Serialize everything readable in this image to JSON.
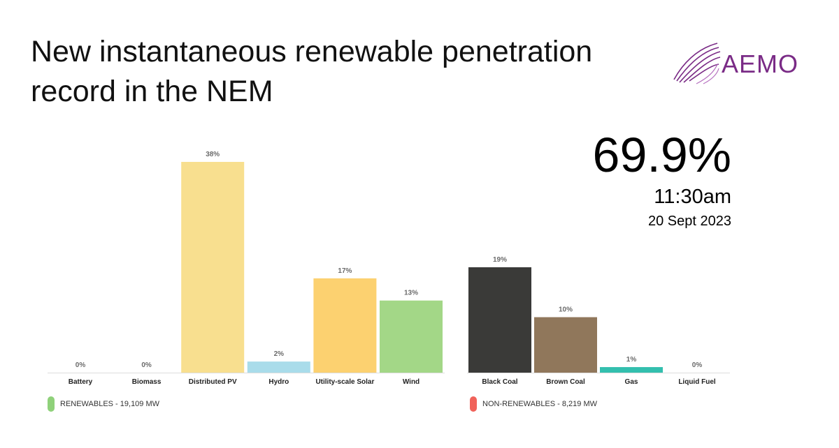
{
  "title": "New instantaneous renewable penetration record in the NEM",
  "logo": {
    "text": "AEMO",
    "icon": "aemo-swirl-logo-icon",
    "color": "#7a2b86"
  },
  "headline": {
    "percentage": "69.9%",
    "time": "11:30am",
    "date": "20 Sept 2023"
  },
  "chart_data": [
    {
      "type": "bar",
      "categories": [
        "Battery",
        "Biomass",
        "Distributed PV",
        "Hydro",
        "Utility-scale Solar",
        "Wind"
      ],
      "values": [
        0,
        0,
        38,
        2,
        17,
        13
      ],
      "data_labels": [
        "0%",
        "0%",
        "38%",
        "2%",
        "17%",
        "13%"
      ],
      "colors": [
        "#9ccf7c",
        "#9ccf7c",
        "#f8df8f",
        "#a9dcea",
        "#fcd170",
        "#a3d787"
      ],
      "ylim": [
        0,
        38
      ],
      "legend": {
        "label": "RENEWABLES - 19,109 MW",
        "color": "#8fd17a",
        "placement": "bottom-left"
      }
    },
    {
      "type": "bar",
      "categories": [
        "Black Coal",
        "Brown Coal",
        "Gas",
        "Liquid Fuel"
      ],
      "values": [
        19,
        10,
        1,
        0
      ],
      "data_labels": [
        "19%",
        "10%",
        "1%",
        "0%"
      ],
      "colors": [
        "#3a3a38",
        "#90775b",
        "#33bfae",
        "#777777"
      ],
      "ylim": [
        0,
        38
      ],
      "legend": {
        "label": "NON-RENEWABLES - 8,219 MW",
        "color": "#f0625a",
        "placement": "bottom-left"
      }
    }
  ]
}
